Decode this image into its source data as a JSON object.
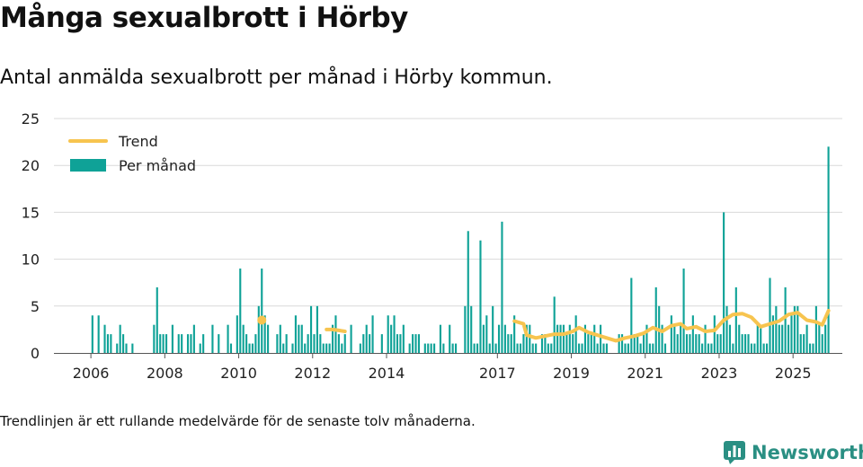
{
  "header": {
    "title": "Många sexualbrott i Hörby",
    "subtitle": "Antal anmälda sexualbrott per månad i Hörby kommun."
  },
  "footer": {
    "note": "Trendlinjen är ett rullande medelvärde för de senaste tolv månaderna.",
    "brand": "Newsworthy"
  },
  "colors": {
    "bar": "#0fa297",
    "trend": "#f7c44f",
    "grid": "#d9d9d9",
    "axis": "#555555",
    "brand": "#2a8f83"
  },
  "chart_data": {
    "type": "bar",
    "title": "Många sexualbrott i Hörby",
    "subtitle": "Antal anmälda sexualbrott per månad i Hörby kommun.",
    "xlabel": "",
    "ylabel": "",
    "ylim": [
      0,
      25
    ],
    "yticks": [
      "0",
      "5",
      "10",
      "15",
      "20",
      "25"
    ],
    "xticks": [
      "2006",
      "2008",
      "2010",
      "2012",
      "2014",
      "2017",
      "2019",
      "2021",
      "2023",
      "2025"
    ],
    "xlim": [
      "2005-01",
      "2026-05"
    ],
    "grid": true,
    "legend_position": "top-left",
    "legend": [
      "Trend",
      "Per månad"
    ],
    "series": [
      {
        "name": "Per månad",
        "kind": "bar",
        "points": [
          [
            "2006-01",
            4
          ],
          [
            "2006-03",
            4
          ],
          [
            "2006-05",
            3
          ],
          [
            "2006-06",
            2
          ],
          [
            "2006-07",
            2
          ],
          [
            "2006-09",
            1
          ],
          [
            "2006-10",
            3
          ],
          [
            "2006-11",
            2
          ],
          [
            "2006-12",
            1
          ],
          [
            "2007-02",
            1
          ],
          [
            "2007-09",
            3
          ],
          [
            "2007-10",
            7
          ],
          [
            "2007-11",
            2
          ],
          [
            "2007-12",
            2
          ],
          [
            "2008-01",
            2
          ],
          [
            "2008-03",
            3
          ],
          [
            "2008-05",
            2
          ],
          [
            "2008-06",
            2
          ],
          [
            "2008-08",
            2
          ],
          [
            "2008-09",
            2
          ],
          [
            "2008-10",
            3
          ],
          [
            "2008-12",
            1
          ],
          [
            "2009-01",
            2
          ],
          [
            "2009-04",
            3
          ],
          [
            "2009-06",
            2
          ],
          [
            "2009-09",
            3
          ],
          [
            "2009-10",
            1
          ],
          [
            "2009-12",
            4
          ],
          [
            "2010-01",
            9
          ],
          [
            "2010-02",
            3
          ],
          [
            "2010-03",
            2
          ],
          [
            "2010-04",
            1
          ],
          [
            "2010-05",
            1
          ],
          [
            "2010-06",
            2
          ],
          [
            "2010-07",
            5
          ],
          [
            "2010-08",
            9
          ],
          [
            "2010-09",
            4
          ],
          [
            "2010-10",
            3
          ],
          [
            "2011-01",
            2
          ],
          [
            "2011-02",
            3
          ],
          [
            "2011-03",
            1
          ],
          [
            "2011-04",
            2
          ],
          [
            "2011-06",
            1
          ],
          [
            "2011-07",
            4
          ],
          [
            "2011-08",
            3
          ],
          [
            "2011-09",
            3
          ],
          [
            "2011-10",
            1
          ],
          [
            "2011-11",
            2
          ],
          [
            "2011-12",
            5
          ],
          [
            "2012-01",
            2
          ],
          [
            "2012-02",
            5
          ],
          [
            "2012-03",
            2
          ],
          [
            "2012-04",
            1
          ],
          [
            "2012-05",
            1
          ],
          [
            "2012-06",
            1
          ],
          [
            "2012-07",
            3
          ],
          [
            "2012-08",
            4
          ],
          [
            "2012-09",
            2
          ],
          [
            "2012-10",
            1
          ],
          [
            "2012-11",
            2
          ],
          [
            "2013-01",
            3
          ],
          [
            "2013-04",
            1
          ],
          [
            "2013-05",
            2
          ],
          [
            "2013-06",
            3
          ],
          [
            "2013-07",
            2
          ],
          [
            "2013-08",
            4
          ],
          [
            "2013-11",
            2
          ],
          [
            "2014-01",
            4
          ],
          [
            "2014-02",
            3
          ],
          [
            "2014-03",
            4
          ],
          [
            "2014-04",
            2
          ],
          [
            "2014-05",
            2
          ],
          [
            "2014-06",
            3
          ],
          [
            "2014-08",
            1
          ],
          [
            "2014-09",
            2
          ],
          [
            "2014-10",
            2
          ],
          [
            "2014-11",
            2
          ],
          [
            "2015-01",
            1
          ],
          [
            "2015-02",
            1
          ],
          [
            "2015-03",
            1
          ],
          [
            "2015-04",
            1
          ],
          [
            "2015-06",
            3
          ],
          [
            "2015-07",
            1
          ],
          [
            "2015-09",
            3
          ],
          [
            "2015-10",
            1
          ],
          [
            "2015-11",
            1
          ],
          [
            "2016-02",
            5
          ],
          [
            "2016-03",
            13
          ],
          [
            "2016-04",
            5
          ],
          [
            "2016-05",
            1
          ],
          [
            "2016-06",
            1
          ],
          [
            "2016-07",
            12
          ],
          [
            "2016-08",
            3
          ],
          [
            "2016-09",
            4
          ],
          [
            "2016-10",
            1
          ],
          [
            "2016-11",
            5
          ],
          [
            "2016-12",
            1
          ],
          [
            "2017-01",
            3
          ],
          [
            "2017-02",
            14
          ],
          [
            "2017-03",
            3
          ],
          [
            "2017-04",
            2
          ],
          [
            "2017-05",
            2
          ],
          [
            "2017-06",
            4
          ],
          [
            "2017-07",
            1
          ],
          [
            "2017-08",
            1
          ],
          [
            "2017-09",
            2
          ],
          [
            "2017-10",
            3
          ],
          [
            "2017-11",
            3
          ],
          [
            "2017-12",
            1
          ],
          [
            "2018-01",
            1
          ],
          [
            "2018-03",
            2
          ],
          [
            "2018-04",
            2
          ],
          [
            "2018-05",
            1
          ],
          [
            "2018-06",
            1
          ],
          [
            "2018-07",
            6
          ],
          [
            "2018-08",
            3
          ],
          [
            "2018-09",
            3
          ],
          [
            "2018-10",
            3
          ],
          [
            "2018-11",
            2
          ],
          [
            "2018-12",
            3
          ],
          [
            "2019-01",
            2
          ],
          [
            "2019-02",
            4
          ],
          [
            "2019-03",
            1
          ],
          [
            "2019-04",
            1
          ],
          [
            "2019-05",
            3
          ],
          [
            "2019-06",
            2
          ],
          [
            "2019-07",
            2
          ],
          [
            "2019-08",
            3
          ],
          [
            "2019-09",
            1
          ],
          [
            "2019-10",
            3
          ],
          [
            "2019-11",
            1
          ],
          [
            "2019-12",
            1
          ],
          [
            "2020-04",
            2
          ],
          [
            "2020-05",
            2
          ],
          [
            "2020-06",
            1
          ],
          [
            "2020-07",
            1
          ],
          [
            "2020-08",
            8
          ],
          [
            "2020-09",
            2
          ],
          [
            "2020-10",
            2
          ],
          [
            "2020-11",
            1
          ],
          [
            "2020-12",
            2
          ],
          [
            "2021-01",
            3
          ],
          [
            "2021-02",
            1
          ],
          [
            "2021-03",
            1
          ],
          [
            "2021-04",
            7
          ],
          [
            "2021-05",
            5
          ],
          [
            "2021-06",
            3
          ],
          [
            "2021-07",
            1
          ],
          [
            "2021-09",
            4
          ],
          [
            "2021-10",
            3
          ],
          [
            "2021-11",
            2
          ],
          [
            "2021-12",
            3
          ],
          [
            "2022-01",
            9
          ],
          [
            "2022-02",
            2
          ],
          [
            "2022-03",
            2
          ],
          [
            "2022-04",
            4
          ],
          [
            "2022-05",
            2
          ],
          [
            "2022-06",
            2
          ],
          [
            "2022-07",
            1
          ],
          [
            "2022-08",
            3
          ],
          [
            "2022-09",
            1
          ],
          [
            "2022-10",
            1
          ],
          [
            "2022-11",
            4
          ],
          [
            "2022-12",
            2
          ],
          [
            "2023-01",
            2
          ],
          [
            "2023-02",
            15
          ],
          [
            "2023-03",
            5
          ],
          [
            "2023-04",
            3
          ],
          [
            "2023-05",
            1
          ],
          [
            "2023-06",
            7
          ],
          [
            "2023-07",
            3
          ],
          [
            "2023-08",
            2
          ],
          [
            "2023-09",
            2
          ],
          [
            "2023-10",
            2
          ],
          [
            "2023-11",
            1
          ],
          [
            "2023-12",
            1
          ],
          [
            "2024-01",
            3
          ],
          [
            "2024-02",
            3
          ],
          [
            "2024-03",
            1
          ],
          [
            "2024-04",
            1
          ],
          [
            "2024-05",
            8
          ],
          [
            "2024-06",
            4
          ],
          [
            "2024-07",
            5
          ],
          [
            "2024-08",
            3
          ],
          [
            "2024-09",
            3
          ],
          [
            "2024-10",
            7
          ],
          [
            "2024-11",
            3
          ],
          [
            "2024-12",
            4
          ],
          [
            "2025-01",
            5
          ],
          [
            "2025-02",
            5
          ],
          [
            "2025-03",
            2
          ],
          [
            "2025-04",
            2
          ],
          [
            "2025-05",
            3
          ],
          [
            "2025-06",
            1
          ],
          [
            "2025-07",
            1
          ],
          [
            "2025-08",
            5
          ],
          [
            "2025-09",
            3
          ],
          [
            "2025-10",
            2
          ],
          [
            "2025-11",
            3
          ],
          [
            "2025-12",
            22
          ]
        ]
      },
      {
        "name": "Trend",
        "kind": "line",
        "segments": [
          [
            [
              "2010-08",
              3.5
            ]
          ],
          [
            [
              "2012-05",
              2.5
            ],
            [
              "2012-07",
              2.5
            ],
            [
              "2012-09",
              2.4
            ],
            [
              "2012-11",
              2.3
            ]
          ],
          [
            [
              "2017-06",
              3.4
            ],
            [
              "2017-09",
              3.1
            ],
            [
              "2017-10",
              1.9
            ],
            [
              "2018-01",
              1.6
            ],
            [
              "2018-04",
              1.8
            ],
            [
              "2018-07",
              2.0
            ],
            [
              "2018-10",
              2.0
            ],
            [
              "2019-01",
              2.3
            ],
            [
              "2019-03",
              2.7
            ],
            [
              "2019-06",
              2.2
            ],
            [
              "2019-09",
              1.9
            ],
            [
              "2019-12",
              1.6
            ],
            [
              "2020-03",
              1.3
            ],
            [
              "2020-06",
              1.6
            ],
            [
              "2020-09",
              1.8
            ],
            [
              "2020-12",
              2.1
            ],
            [
              "2021-03",
              2.7
            ],
            [
              "2021-06",
              2.3
            ],
            [
              "2021-09",
              2.9
            ],
            [
              "2021-12",
              3.1
            ],
            [
              "2022-02",
              2.6
            ],
            [
              "2022-05",
              2.8
            ],
            [
              "2022-08",
              2.3
            ],
            [
              "2022-11",
              2.4
            ],
            [
              "2023-02",
              3.5
            ],
            [
              "2023-05",
              4.1
            ],
            [
              "2023-08",
              4.2
            ],
            [
              "2023-11",
              3.8
            ],
            [
              "2024-02",
              2.8
            ],
            [
              "2024-05",
              3.1
            ],
            [
              "2024-08",
              3.4
            ],
            [
              "2024-11",
              4.1
            ],
            [
              "2025-02",
              4.3
            ],
            [
              "2025-05",
              3.5
            ],
            [
              "2025-08",
              3.3
            ],
            [
              "2025-10",
              3.0
            ],
            [
              "2025-12",
              4.5
            ]
          ]
        ]
      }
    ]
  }
}
